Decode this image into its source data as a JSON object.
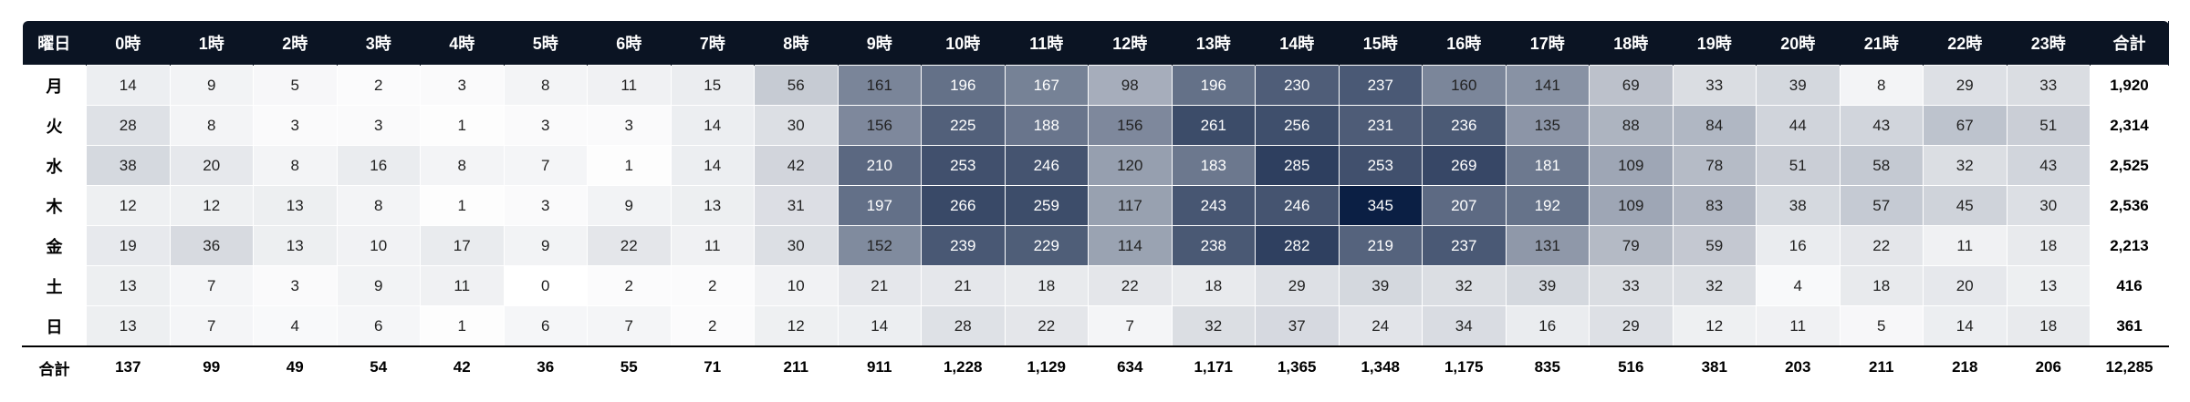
{
  "chart_data": {
    "type": "heatmap",
    "corner_label": "曜日",
    "total_label": "合計",
    "x": [
      "0時",
      "1時",
      "2時",
      "3時",
      "4時",
      "5時",
      "6時",
      "7時",
      "8時",
      "9時",
      "10時",
      "11時",
      "12時",
      "13時",
      "14時",
      "15時",
      "16時",
      "17時",
      "18時",
      "19時",
      "20時",
      "21時",
      "22時",
      "23時"
    ],
    "y": [
      "月",
      "火",
      "水",
      "木",
      "金",
      "土",
      "日"
    ],
    "values": [
      [
        14,
        9,
        5,
        2,
        3,
        8,
        11,
        15,
        56,
        161,
        196,
        167,
        98,
        196,
        230,
        237,
        160,
        141,
        69,
        33,
        39,
        8,
        29,
        33
      ],
      [
        28,
        8,
        3,
        3,
        1,
        3,
        3,
        14,
        30,
        156,
        225,
        188,
        156,
        261,
        256,
        231,
        236,
        135,
        88,
        84,
        44,
        43,
        67,
        51
      ],
      [
        38,
        20,
        8,
        16,
        8,
        7,
        1,
        14,
        42,
        210,
        253,
        246,
        120,
        183,
        285,
        253,
        269,
        181,
        109,
        78,
        51,
        58,
        32,
        43
      ],
      [
        12,
        12,
        13,
        8,
        1,
        3,
        9,
        13,
        31,
        197,
        266,
        259,
        117,
        243,
        246,
        345,
        207,
        192,
        109,
        83,
        38,
        57,
        45,
        30
      ],
      [
        19,
        36,
        13,
        10,
        17,
        9,
        22,
        11,
        30,
        152,
        239,
        229,
        114,
        238,
        282,
        219,
        237,
        131,
        79,
        59,
        16,
        22,
        11,
        18
      ],
      [
        13,
        7,
        3,
        9,
        11,
        0,
        2,
        2,
        10,
        21,
        21,
        18,
        22,
        18,
        29,
        39,
        32,
        39,
        33,
        32,
        4,
        18,
        20,
        13
      ],
      [
        13,
        7,
        4,
        6,
        1,
        6,
        7,
        2,
        12,
        14,
        28,
        22,
        7,
        32,
        37,
        24,
        34,
        16,
        29,
        12,
        11,
        5,
        14,
        18
      ]
    ],
    "row_totals": [
      "1,920",
      "2,314",
      "2,525",
      "2,536",
      "2,213",
      "416",
      "361"
    ],
    "column_totals": [
      "137",
      "99",
      "49",
      "54",
      "42",
      "36",
      "55",
      "71",
      "211",
      "911",
      "1,228",
      "1,129",
      "634",
      "1,171",
      "1,365",
      "1,348",
      "1,175",
      "835",
      "516",
      "381",
      "203",
      "211",
      "218",
      "206"
    ],
    "grand_total": "12,285",
    "color_scale": {
      "low": "#ffffff",
      "high": "#0b1f44",
      "header_bg": "#0b1423"
    }
  }
}
